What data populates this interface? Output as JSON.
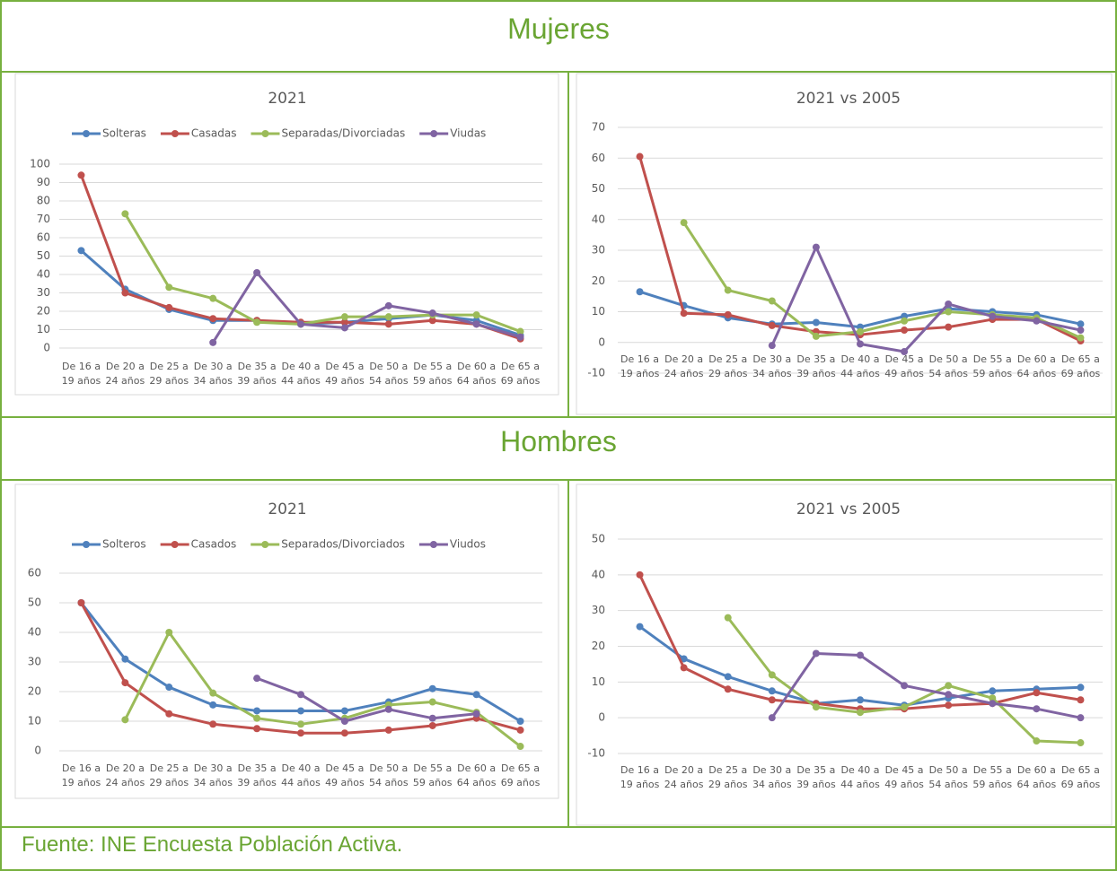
{
  "sections": [
    "Mujeres",
    "Hombres"
  ],
  "source": "Fuente: INE Encuesta Población Activa.",
  "chart_data": [
    {
      "type": "line",
      "title": "2021",
      "categories": [
        "De 16 a 19 años",
        "De 20 a 24 años",
        "De 25 a 29 años",
        "De 30 a 34 años",
        "De 35 a 39 años",
        "De 40 a 44 años",
        "De 45 a 49 años",
        "De 50 a 54 años",
        "De 55 a 59 años",
        "De 60 a 64 años",
        "De 65 a 69 años"
      ],
      "series": [
        {
          "name": "Solteras",
          "color": "#4f81bd",
          "values": [
            53,
            32,
            21,
            15,
            15,
            13,
            14,
            16,
            18,
            15,
            7
          ]
        },
        {
          "name": "Casadas",
          "color": "#c0504d",
          "values": [
            94,
            30,
            22,
            16,
            15,
            14,
            14,
            13,
            15,
            13,
            5
          ]
        },
        {
          "name": "Separadas/Divorciadas",
          "color": "#9bbb59",
          "values": [
            null,
            73,
            33,
            27,
            14,
            13,
            17,
            17,
            18,
            18,
            9
          ]
        },
        {
          "name": "Viudas",
          "color": "#8064a2",
          "values": [
            null,
            null,
            null,
            3,
            41,
            13,
            11,
            23,
            19,
            13,
            6
          ]
        }
      ],
      "ylim": [
        0,
        100
      ],
      "yticks": [
        0,
        10,
        20,
        30,
        40,
        50,
        60,
        70,
        80,
        90,
        100
      ],
      "grid": true,
      "legend": "top"
    },
    {
      "type": "line",
      "title": "2021 vs 2005",
      "categories": [
        "De 16 a 19 años",
        "De 20 a 24 años",
        "De 25 a 29 años",
        "De 30 a 34 años",
        "De 35 a 39 años",
        "De 40 a 44 años",
        "De 45 a 49 años",
        "De 50 a 54 años",
        "De 55 a 59 años",
        "De 60 a 64 años",
        "De 65 a 69 años"
      ],
      "series": [
        {
          "color": "#4f81bd",
          "values": [
            16.5,
            12,
            8,
            6,
            6.5,
            5,
            8.5,
            11,
            10,
            9,
            6
          ]
        },
        {
          "color": "#c0504d",
          "values": [
            60.5,
            9.5,
            9,
            5.5,
            3.5,
            2.5,
            4,
            5,
            7.5,
            7.5,
            0.5
          ]
        },
        {
          "color": "#9bbb59",
          "values": [
            null,
            39,
            17,
            13.5,
            2,
            3.5,
            7,
            10,
            9,
            8,
            1.5
          ]
        },
        {
          "color": "#8064a2",
          "values": [
            null,
            null,
            null,
            -1,
            31,
            -0.5,
            -3,
            12.5,
            8.5,
            7,
            4
          ]
        }
      ],
      "ylim": [
        -10,
        70
      ],
      "yticks": [
        -10,
        0,
        10,
        20,
        30,
        40,
        50,
        60,
        70
      ],
      "grid": true
    },
    {
      "type": "line",
      "title": "2021",
      "categories": [
        "De 16 a 19 años",
        "De 20 a 24 años",
        "De 25 a 29 años",
        "De 30 a 34 años",
        "De 35 a 39 años",
        "De 40 a 44 años",
        "De 45 a 49 años",
        "De 50 a 54 años",
        "De 55 a 59 años",
        "De 60 a 64 años",
        "De 65 a 69 años"
      ],
      "series": [
        {
          "name": "Solteros",
          "color": "#4f81bd",
          "values": [
            50,
            31,
            21.5,
            15.5,
            13.5,
            13.5,
            13.5,
            16.5,
            21,
            19,
            10
          ]
        },
        {
          "name": "Casados",
          "color": "#c0504d",
          "values": [
            50,
            23,
            12.5,
            9,
            7.5,
            6,
            6,
            7,
            8.5,
            11,
            7
          ]
        },
        {
          "name": "Separados/Divorciados",
          "color": "#9bbb59",
          "values": [
            null,
            10.5,
            40,
            19.5,
            11,
            9,
            11,
            15.5,
            16.5,
            13,
            1.5
          ]
        },
        {
          "name": "Viudos",
          "color": "#8064a2",
          "values": [
            null,
            null,
            null,
            null,
            24.5,
            19,
            10,
            14,
            11,
            12.5,
            null
          ]
        }
      ],
      "ylim": [
        0,
        60
      ],
      "yticks": [
        0,
        10,
        20,
        30,
        40,
        50,
        60
      ],
      "grid": true,
      "legend": "top"
    },
    {
      "type": "line",
      "title": "2021 vs 2005",
      "categories": [
        "De 16 a 19 años",
        "De 20 a 24 años",
        "De 25 a 29 años",
        "De 30 a 34 años",
        "De 35 a 39 años",
        "De 40 a 44 años",
        "De 45 a 49 años",
        "De 50 a 54 años",
        "De 55 a 59 años",
        "De 60 a 64 años",
        "De 65 a 69 años"
      ],
      "series": [
        {
          "color": "#4f81bd",
          "values": [
            25.5,
            16.5,
            11.5,
            7.5,
            4,
            5,
            3.5,
            5.5,
            7.5,
            8,
            8.5
          ]
        },
        {
          "color": "#c0504d",
          "values": [
            40,
            14,
            8,
            5,
            4,
            2.5,
            2.5,
            3.5,
            4,
            7,
            5
          ]
        },
        {
          "color": "#9bbb59",
          "values": [
            null,
            null,
            28,
            12,
            3,
            1.5,
            3,
            9,
            5.5,
            -6.5,
            -7
          ]
        },
        {
          "color": "#8064a2",
          "values": [
            null,
            null,
            null,
            0,
            18,
            17.5,
            9,
            6.5,
            4,
            2.5,
            0
          ]
        }
      ],
      "ylim": [
        -10,
        50
      ],
      "yticks": [
        -10,
        0,
        10,
        20,
        30,
        40,
        50
      ],
      "grid": true
    }
  ]
}
